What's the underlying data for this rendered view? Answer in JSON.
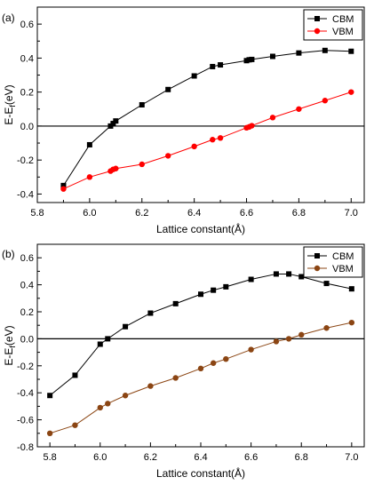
{
  "chart_data": [
    {
      "type": "line",
      "panel_label": "(a)",
      "xlabel": "Lattice constant(Å)",
      "ylabel": "E-E",
      "ylabel_sub": "f",
      "ylabel_unit": "(eV)",
      "xlim": [
        5.8,
        7.05
      ],
      "ylim": [
        -0.45,
        0.7
      ],
      "xticks": [
        "5.8",
        "6.0",
        "6.2",
        "6.4",
        "6.6",
        "6.8",
        "7.0"
      ],
      "xtick_values": [
        5.8,
        6.0,
        6.2,
        6.4,
        6.6,
        6.8,
        7.0
      ],
      "yticks": [
        "-0.4",
        "-0.2",
        "0.0",
        "0.2",
        "0.4",
        "0.6"
      ],
      "ytick_values": [
        -0.4,
        -0.2,
        0.0,
        0.2,
        0.4,
        0.6
      ],
      "reference_line_y": 0,
      "legend_position": "top-right",
      "grid": false,
      "series": [
        {
          "name": "CBM",
          "color": "#000000",
          "marker": "square",
          "x": [
            5.9,
            6.0,
            6.08,
            6.09,
            6.1,
            6.2,
            6.3,
            6.4,
            6.47,
            6.5,
            6.6,
            6.61,
            6.62,
            6.7,
            6.8,
            6.9,
            7.0
          ],
          "y": [
            -0.35,
            -0.11,
            0.0,
            0.015,
            0.03,
            0.125,
            0.215,
            0.295,
            0.35,
            0.36,
            0.385,
            0.39,
            0.392,
            0.41,
            0.43,
            0.445,
            0.44
          ]
        },
        {
          "name": "VBM",
          "color": "#ff0000",
          "marker": "circle",
          "x": [
            5.9,
            6.0,
            6.08,
            6.09,
            6.1,
            6.2,
            6.3,
            6.4,
            6.47,
            6.5,
            6.6,
            6.61,
            6.62,
            6.7,
            6.8,
            6.9,
            7.0
          ],
          "y": [
            -0.37,
            -0.3,
            -0.265,
            -0.255,
            -0.25,
            -0.225,
            -0.175,
            -0.12,
            -0.08,
            -0.07,
            -0.01,
            -0.005,
            0.002,
            0.05,
            0.1,
            0.15,
            0.2
          ]
        }
      ]
    },
    {
      "type": "line",
      "panel_label": "(b)",
      "xlabel": "Lattice constant(Å)",
      "ylabel": "E-E",
      "ylabel_sub": "f",
      "ylabel_unit": "(eV)",
      "xlim": [
        5.75,
        7.05
      ],
      "ylim": [
        -0.8,
        0.7
      ],
      "xticks": [
        "5.8",
        "6.0",
        "6.2",
        "6.4",
        "6.6",
        "6.8",
        "7.0"
      ],
      "xtick_values": [
        5.8,
        6.0,
        6.2,
        6.4,
        6.6,
        6.8,
        7.0
      ],
      "yticks": [
        "-0.8",
        "-0.6",
        "-0.4",
        "-0.2",
        "0.0",
        "0.2",
        "0.4",
        "0.6"
      ],
      "ytick_values": [
        -0.8,
        -0.6,
        -0.4,
        -0.2,
        0.0,
        0.2,
        0.4,
        0.6
      ],
      "reference_line_y": 0,
      "legend_position": "top-right",
      "grid": false,
      "series": [
        {
          "name": "CBM",
          "color": "#000000",
          "marker": "square",
          "x": [
            5.8,
            5.9,
            6.0,
            6.03,
            6.1,
            6.2,
            6.3,
            6.4,
            6.45,
            6.5,
            6.6,
            6.7,
            6.75,
            6.8,
            6.9,
            7.0
          ],
          "y": [
            -0.42,
            -0.27,
            -0.04,
            0.0,
            0.09,
            0.19,
            0.26,
            0.33,
            0.36,
            0.385,
            0.44,
            0.48,
            0.48,
            0.46,
            0.41,
            0.37
          ]
        },
        {
          "name": "VBM",
          "color": "#8b4513",
          "marker": "circle",
          "x": [
            5.8,
            5.9,
            6.0,
            6.03,
            6.1,
            6.2,
            6.3,
            6.4,
            6.45,
            6.5,
            6.6,
            6.7,
            6.75,
            6.8,
            6.9,
            7.0
          ],
          "y": [
            -0.7,
            -0.64,
            -0.51,
            -0.48,
            -0.42,
            -0.35,
            -0.29,
            -0.22,
            -0.18,
            -0.15,
            -0.08,
            -0.02,
            0.0,
            0.03,
            0.08,
            0.12
          ]
        }
      ]
    }
  ]
}
